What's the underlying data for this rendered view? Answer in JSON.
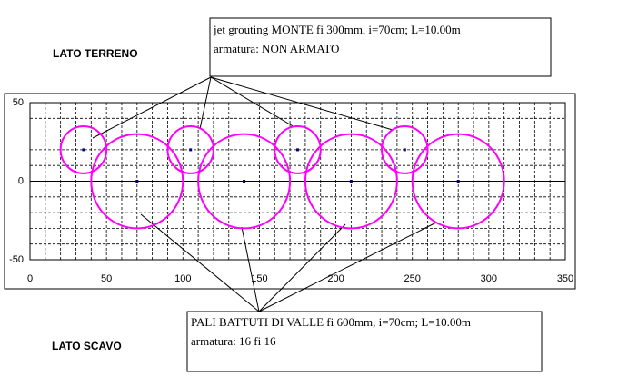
{
  "chart_data": {
    "type": "scatter",
    "xlim": [
      0,
      350
    ],
    "xticks": [
      0,
      50,
      100,
      150,
      200,
      250,
      300,
      350
    ],
    "ylim": [
      -50,
      50
    ],
    "yticks": [
      -50,
      0,
      50
    ],
    "grid": true,
    "series": [
      {
        "color": "#ff00ff",
        "x": [
          35,
          105,
          175,
          245
        ],
        "values": [
          20,
          20,
          20,
          20
        ],
        "sizes": [
          15,
          15,
          15,
          15
        ]
      },
      {
        "color": "#ff00ff",
        "x": [
          70,
          140,
          210,
          280
        ],
        "values": [
          0,
          0,
          0,
          0
        ],
        "sizes": [
          30,
          30,
          30,
          30
        ]
      }
    ],
    "annotations": [
      {
        "lines": [
          "jet grouting MONTE fi 300mm, i=70cm; L=10.00m",
          "armatura: NON ARMATO"
        ]
      },
      {
        "lines": [
          "PALI BATTUTI DI VALLE fi 600mm, i=70cm; L=10.00m",
          "armatura: 16 fi 16"
        ]
      }
    ],
    "side_labels": [
      "LATO TERRENO",
      "LATO SCAVO"
    ]
  }
}
